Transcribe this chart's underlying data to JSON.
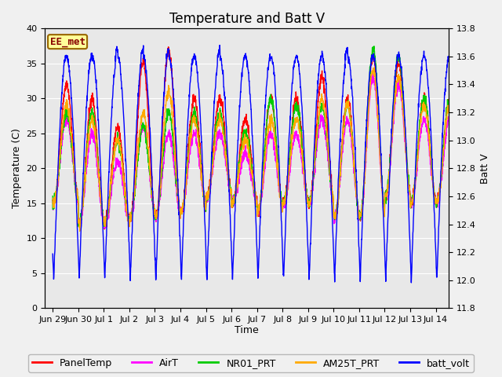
{
  "title": "Temperature and Batt V",
  "xlabel": "Time",
  "ylabel_left": "Temperature (C)",
  "ylabel_right": "Batt V",
  "ylim_left": [
    0,
    40
  ],
  "ylim_right": [
    11.8,
    13.8
  ],
  "xlim": [
    -0.3,
    15.5
  ],
  "xtick_positions": [
    0,
    1,
    2,
    3,
    4,
    5,
    6,
    7,
    8,
    9,
    10,
    11,
    12,
    13,
    14,
    15
  ],
  "xtick_labels": [
    "Jun 29",
    "Jun 30",
    "Jul 1",
    "Jul 2",
    "Jul 3",
    "Jul 4",
    "Jul 5",
    "Jul 6",
    "Jul 7",
    "Jul 8",
    "Jul 9",
    "Jul 10",
    "Jul 11",
    "Jul 12",
    "Jul 13",
    "Jul 14"
  ],
  "yticks_left": [
    0,
    5,
    10,
    15,
    20,
    25,
    30,
    35,
    40
  ],
  "yticks_right": [
    11.8,
    12.0,
    12.2,
    12.4,
    12.6,
    12.8,
    13.0,
    13.2,
    13.4,
    13.6,
    13.8
  ],
  "colors": {
    "PanelTemp": "#ff0000",
    "AirT": "#ff00ff",
    "NR01_PRT": "#00cc00",
    "AM25T_PRT": "#ffaa00",
    "batt_volt": "#0000ff"
  },
  "legend_labels": [
    "PanelTemp",
    "AirT",
    "NR01_PRT",
    "AM25T_PRT",
    "batt_volt"
  ],
  "station_label": "EE_met",
  "fig_facecolor": "#f0f0f0",
  "ax_facecolor": "#e8e8e8",
  "title_fontsize": 12,
  "axis_fontsize": 9,
  "tick_fontsize": 8,
  "legend_fontsize": 9,
  "grid_color": "#ffffff",
  "num_points": 2000
}
